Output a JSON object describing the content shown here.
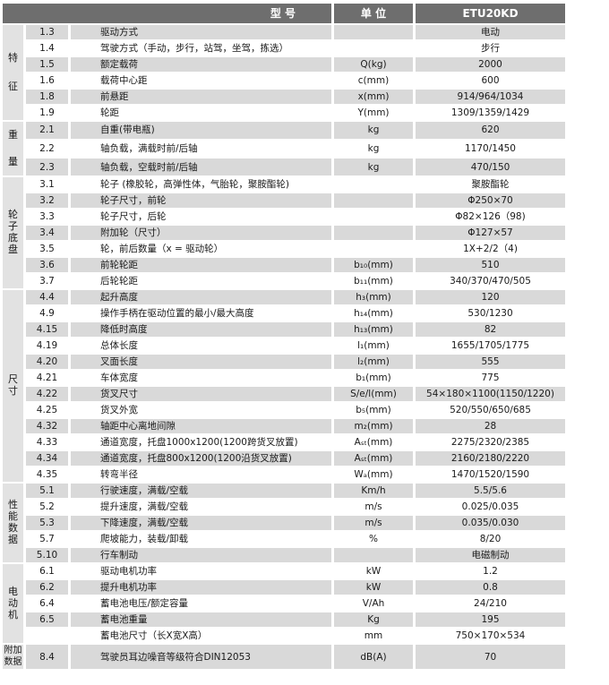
{
  "header": {
    "model_label": "型 号",
    "unit_label": "单 位",
    "model_value": "ETU20KD"
  },
  "groups": [
    {
      "label": "特征",
      "rows": [
        {
          "num": "1.3",
          "desc": "驱动方式",
          "unit": "",
          "value": "电动"
        },
        {
          "num": "1.4",
          "desc": "驾驶方式（手动，步行，站驾，坐驾，拣选）",
          "unit": "",
          "value": "步行"
        },
        {
          "num": "1.5",
          "desc": "额定载荷",
          "unit": "Q(kg)",
          "value": "2000"
        },
        {
          "num": "1.6",
          "desc": "载荷中心距",
          "unit": "c(mm)",
          "value": "600"
        },
        {
          "num": "1.8",
          "desc": "前悬距",
          "unit": "x(mm)",
          "value": "914/964/1034"
        },
        {
          "num": "1.9",
          "desc": "轮距",
          "unit": "Y(mm)",
          "value": "1309/1359/1429"
        }
      ]
    },
    {
      "label": "重量",
      "rows": [
        {
          "num": "2.1",
          "desc": "自重(带电瓶)",
          "unit": "kg",
          "value": "620"
        },
        {
          "num": "2.2",
          "desc": "轴负载，满载时前/后轴",
          "unit": "kg",
          "value": "1170/1450"
        },
        {
          "num": "2.3",
          "desc": "轴负载，空载时前/后轴",
          "unit": "kg",
          "value": "470/150"
        }
      ]
    },
    {
      "label": "轮子底盘",
      "rows": [
        {
          "num": "3.1",
          "desc": "轮子 (橡胶轮，高弹性体，气胎轮，聚胺酯轮)",
          "unit": "",
          "value": "聚胺酯轮"
        },
        {
          "num": "3.2",
          "desc": "轮子尺寸，前轮",
          "unit": "",
          "value": "Φ250×70"
        },
        {
          "num": "3.3",
          "desc": "轮子尺寸，后轮",
          "unit": "",
          "value": "Φ82×126（98)"
        },
        {
          "num": "3.4",
          "desc": "附加轮（尺寸）",
          "unit": "",
          "value": "Φ127×57"
        },
        {
          "num": "3.5",
          "desc": "轮，前后数量（x = 驱动轮）",
          "unit": "",
          "value": "1X+2/2（4)"
        },
        {
          "num": "3.6",
          "desc": "前轮轮距",
          "unit": "b₁₀(mm)",
          "value": "510"
        },
        {
          "num": "3.7",
          "desc": "后轮轮距",
          "unit": "b₁₁(mm)",
          "value": "340/370/470/505"
        }
      ]
    },
    {
      "label": "尺寸",
      "rows": [
        {
          "num": "4.4",
          "desc": "起升高度",
          "unit": "h₃(mm)",
          "value": "120"
        },
        {
          "num": "4.9",
          "desc": "操作手柄在驱动位置的最小/最大高度",
          "unit": "h₁₄(mm)",
          "value": "530/1230"
        },
        {
          "num": "4.15",
          "desc": "降低时高度",
          "unit": "h₁₃(mm)",
          "value": "82"
        },
        {
          "num": "4.19",
          "desc": "总体长度",
          "unit": "l₁(mm)",
          "value": "1655/1705/1775"
        },
        {
          "num": "4.20",
          "desc": "叉面长度",
          "unit": "l₂(mm)",
          "value": "555"
        },
        {
          "num": "4.21",
          "desc": "车体宽度",
          "unit": "b₁(mm)",
          "value": "775"
        },
        {
          "num": "4.22",
          "desc": "货叉尺寸",
          "unit": "S/e/l(mm)",
          "value": "54×180×1100(1150/1220)"
        },
        {
          "num": "4.25",
          "desc": "货叉外宽",
          "unit": "b₅(mm)",
          "value": "520/550/650/685"
        },
        {
          "num": "4.32",
          "desc": "轴距中心离地间隙",
          "unit": "m₂(mm)",
          "value": "28"
        },
        {
          "num": "4.33",
          "desc": "通道宽度，托盘1000x1200(1200跨货叉放置)",
          "unit": "Aₛₜ(mm)",
          "value": "2275/2320/2385"
        },
        {
          "num": "4.34",
          "desc": "通道宽度，托盘800x1200(1200沿货叉放置)",
          "unit": "Aₛₜ(mm)",
          "value": "2160/2180/2220"
        },
        {
          "num": "4.35",
          "desc": "转弯半径",
          "unit": "Wₐ(mm)",
          "value": "1470/1520/1590"
        }
      ]
    },
    {
      "label": "性能数据",
      "rows": [
        {
          "num": "5.1",
          "desc": "行驶速度，满载/空载",
          "unit": "Km/h",
          "value": "5.5/5.6"
        },
        {
          "num": "5.2",
          "desc": "提升速度，满载/空载",
          "unit": "m/s",
          "value": "0.025/0.035"
        },
        {
          "num": "5.3",
          "desc": "下降速度，满载/空载",
          "unit": "m/s",
          "value": "0.035/0.030"
        },
        {
          "num": "5.7",
          "desc": "爬坡能力，装载/卸载",
          "unit": "%",
          "value": "8/20"
        },
        {
          "num": "5.10",
          "desc": "行车制动",
          "unit": "",
          "value": "电磁制动"
        }
      ]
    },
    {
      "label": "电动机",
      "rows": [
        {
          "num": "6.1",
          "desc": "驱动电机功率",
          "unit": "kW",
          "value": "1.2"
        },
        {
          "num": "6.2",
          "desc": "提升电机功率",
          "unit": "kW",
          "value": "0.8"
        },
        {
          "num": "6.4",
          "desc": "蓄电池电压/额定容量",
          "unit": "V/Ah",
          "value": "24/210"
        },
        {
          "num": "6.5",
          "desc": "蓄电池重量",
          "unit": "Kg",
          "value": "195"
        },
        {
          "num": "",
          "desc": "蓄电池尺寸（长X宽X高）",
          "unit": "mm",
          "value": "750×170×534"
        }
      ]
    },
    {
      "label": "附加数据",
      "rows": [
        {
          "num": "8.4",
          "desc": "驾驶员耳边噪音等级符合DIN12053",
          "unit": "dB(A)",
          "value": "70"
        }
      ]
    }
  ]
}
